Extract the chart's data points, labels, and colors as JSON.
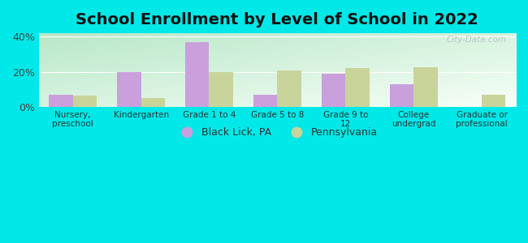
{
  "title": "School Enrollment by Level of School in 2022",
  "categories": [
    "Nursery,\npreschool",
    "Kindergarten",
    "Grade 1 to 4",
    "Grade 5 to 8",
    "Grade 9 to\n12",
    "College\nundergrad",
    "Graduate or\nprofessional"
  ],
  "black_lick": [
    7,
    20,
    37,
    7,
    19,
    13,
    0
  ],
  "pennsylvania": [
    6.5,
    5,
    20,
    21,
    22,
    22.5,
    7
  ],
  "bar_color_bl": "#c9a0dc",
  "bar_color_pa": "#c8d49a",
  "bg_color": "#00e8e8",
  "grad_top_left": "#b8e8c8",
  "grad_bottom_right": "#f0fff8",
  "ylim": [
    0,
    42
  ],
  "yticks": [
    0,
    20,
    40
  ],
  "ytick_labels": [
    "0%",
    "20%",
    "40%"
  ],
  "title_fontsize": 14,
  "legend_label_bl": "Black Lick, PA",
  "legend_label_pa": "Pennsylvania",
  "watermark": "City-Data.com",
  "bar_width": 0.35
}
